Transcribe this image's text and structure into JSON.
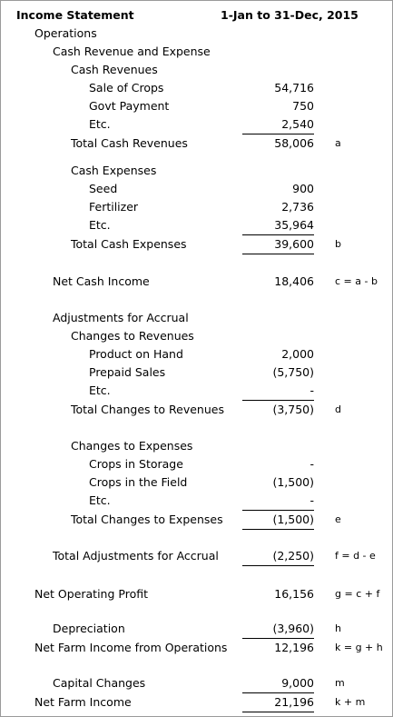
{
  "header": {
    "title": "Income Statement",
    "period": "1-Jan to 31-Dec, 2015"
  },
  "rows": [
    {
      "label": "Operations",
      "value": "",
      "note": ""
    },
    {
      "label": "Cash Revenue and Expense",
      "value": "",
      "note": ""
    },
    {
      "label": "Cash Revenues",
      "value": "",
      "note": ""
    },
    {
      "label": "Sale of Crops",
      "value": "54,716",
      "note": ""
    },
    {
      "label": "Govt Payment",
      "value": "750",
      "note": ""
    },
    {
      "label": "Etc.",
      "value": "2,540",
      "note": ""
    },
    {
      "label": "Total Cash Revenues",
      "value": "58,006",
      "note": "a"
    },
    {
      "label": "Cash Expenses",
      "value": "",
      "note": ""
    },
    {
      "label": "Seed",
      "value": "900",
      "note": ""
    },
    {
      "label": "Fertilizer",
      "value": "2,736",
      "note": ""
    },
    {
      "label": "Etc.",
      "value": "35,964",
      "note": ""
    },
    {
      "label": "Total Cash Expenses",
      "value": "39,600",
      "note": "b"
    },
    {
      "label": "Net Cash Income",
      "value": "18,406",
      "note": "c = a - b"
    },
    {
      "label": "Adjustments for Accrual",
      "value": "",
      "note": ""
    },
    {
      "label": "Changes to Revenues",
      "value": "",
      "note": ""
    },
    {
      "label": "Product on Hand",
      "value": "2,000",
      "note": ""
    },
    {
      "label": "Prepaid Sales",
      "value": "(5,750)",
      "note": ""
    },
    {
      "label": "Etc.",
      "value": "-",
      "note": ""
    },
    {
      "label": "Total Changes to Revenues",
      "value": "(3,750)",
      "note": "d"
    },
    {
      "label": "Changes to Expenses",
      "value": "",
      "note": ""
    },
    {
      "label": "Crops in Storage",
      "value": "-",
      "note": ""
    },
    {
      "label": "Crops in the Field",
      "value": "(1,500)",
      "note": ""
    },
    {
      "label": "Etc.",
      "value": "-",
      "note": ""
    },
    {
      "label": "Total Changes to Expenses",
      "value": "(1,500)",
      "note": "e"
    },
    {
      "label": "Total Adjustments for Accrual",
      "value": "(2,250)",
      "note": "f = d - e"
    },
    {
      "label": "Net Operating Profit",
      "value": "16,156",
      "note": "g = c + f"
    },
    {
      "label": "Depreciation",
      "value": "(3,960)",
      "note": "h"
    },
    {
      "label": "Net Farm Income from Operations",
      "value": "12,196",
      "note": "k = g + h"
    },
    {
      "label": "Capital Changes",
      "value": "9,000",
      "note": "m"
    },
    {
      "label": "Net Farm Income",
      "value": "21,196",
      "note": "k + m"
    }
  ]
}
